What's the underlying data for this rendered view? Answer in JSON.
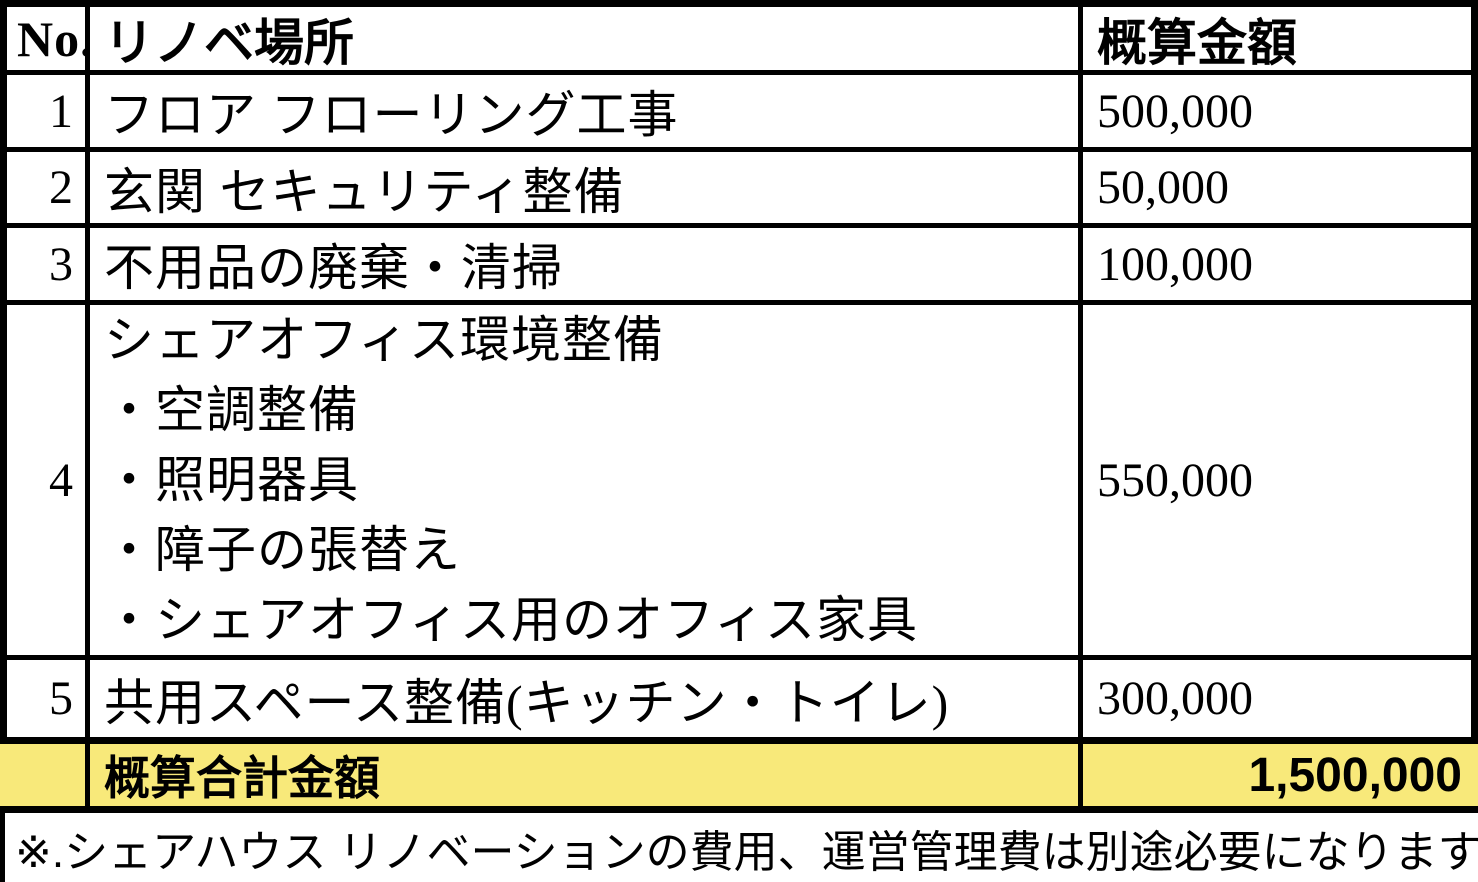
{
  "table": {
    "headers": {
      "no": "No.",
      "place": "リノベ場所",
      "amount": "概算金額"
    },
    "rows": [
      {
        "no": "1",
        "place_lines": [
          "フロア フローリング工事"
        ],
        "amount": "500,000"
      },
      {
        "no": "2",
        "place_lines": [
          "玄関 セキュリティ整備"
        ],
        "amount": "50,000"
      },
      {
        "no": "3",
        "place_lines": [
          "不用品の廃棄・清掃"
        ],
        "amount": "100,000"
      },
      {
        "no": "4",
        "place_lines": [
          "シェアオフィス環境整備",
          "・空調整備",
          "・照明器具",
          "・障子の張替え",
          "・シェアオフィス用のオフィス家具"
        ],
        "amount": "550,000"
      },
      {
        "no": "5",
        "place_lines": [
          "共用スペース整備(キッチン・トイレ)"
        ],
        "amount": "300,000"
      }
    ],
    "total": {
      "label": "概算合計金額",
      "amount": "1,500,000"
    },
    "footnote": "※.シェアハウス リノベーションの費用、運営管理費は別途必要になります"
  },
  "colors": {
    "highlight_yellow": "#F8E97A",
    "border_black": "#000000",
    "background": "#FFFFFF",
    "text": "#000000"
  }
}
